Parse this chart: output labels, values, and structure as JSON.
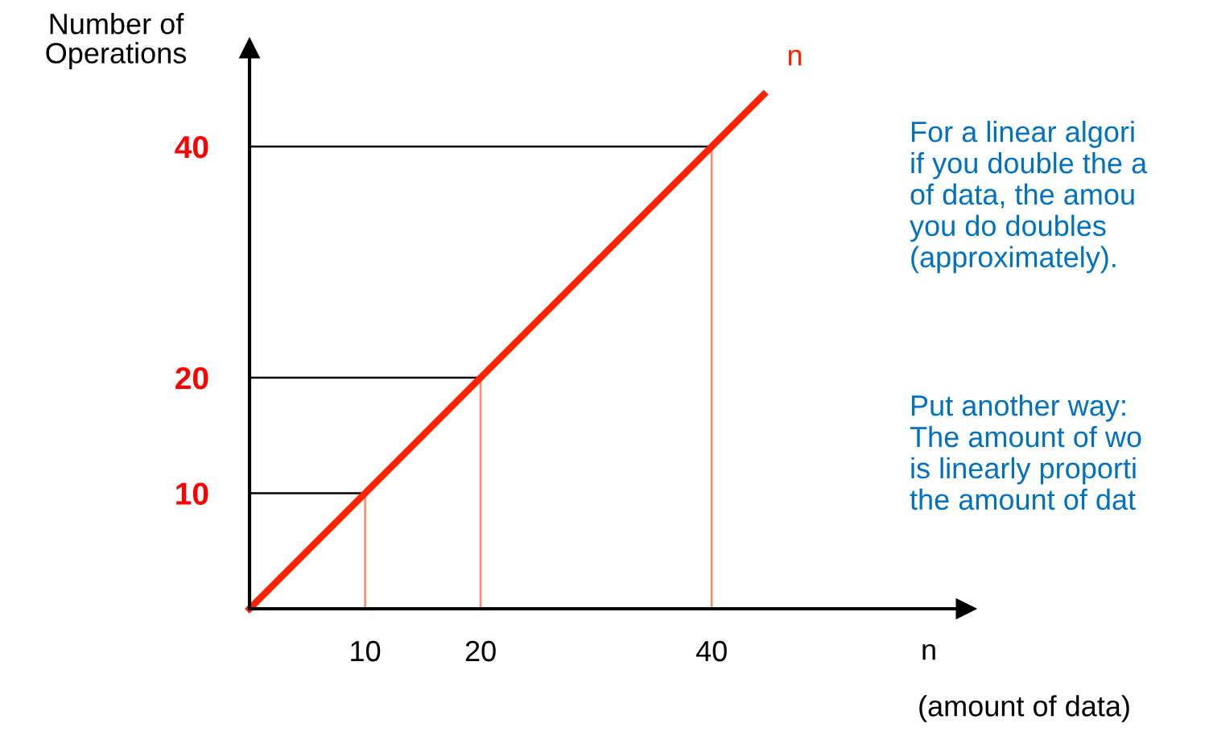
{
  "chart_data": {
    "type": "line",
    "xlabel": "n\n(amount of data)",
    "ylabel": "Number of\nOperations",
    "x": [
      0,
      44.5
    ],
    "series": [
      {
        "name": "n",
        "color": "#ff2200",
        "values": [
          0,
          44.5
        ]
      }
    ],
    "xlim": [
      0,
      62
    ],
    "ylim": [
      0,
      48.5
    ],
    "xticks": [
      10,
      20,
      40
    ],
    "yticks": [
      10,
      20,
      40
    ],
    "ref_lines": [
      {
        "axis": "y",
        "value": 10,
        "color": "#000000"
      },
      {
        "axis": "y",
        "value": 20,
        "color": "#000000"
      },
      {
        "axis": "y",
        "value": 40,
        "color": "#000000"
      },
      {
        "axis": "x",
        "value": 10,
        "color": "#ff8866"
      },
      {
        "axis": "x",
        "value": 20,
        "color": "#ff8866"
      },
      {
        "axis": "x",
        "value": 40,
        "color": "#ff8866"
      }
    ],
    "annotations": [
      "For a linear algori\nif you double the a\nof data, the amou\nyou do doubles\n(approximately).",
      "Put another way:\nThe amount of wo\nis linearly proporti\nthe amount of dat"
    ],
    "grid": false,
    "legend": false,
    "marker": "none",
    "line_style": "solid"
  }
}
